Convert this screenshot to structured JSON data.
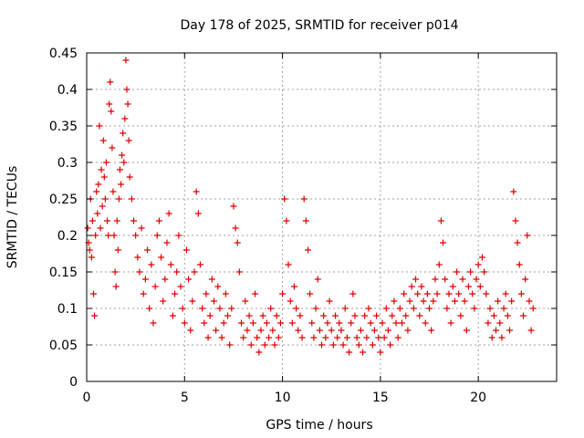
{
  "chart_data": {
    "type": "scatter",
    "title": "Day 178 of 2025, SRMTID for receiver p014",
    "xlabel": "GPS time / hours",
    "ylabel": "SRMTID / TECUs",
    "xlim": [
      0,
      24
    ],
    "ylim": [
      0,
      0.45
    ],
    "x_ticks": [
      0,
      5,
      10,
      15,
      20
    ],
    "y_ticks": [
      0,
      0.05,
      0.1,
      0.15,
      0.2,
      0.25,
      0.3,
      0.35,
      0.4,
      0.45
    ],
    "x_tick_labels": [
      "0",
      "5",
      "10",
      "15",
      "20"
    ],
    "y_tick_labels": [
      "0",
      "0.05",
      "0.1",
      "0.15",
      "0.2",
      "0.25",
      "0.3",
      "0.35",
      "0.4",
      "0.45"
    ],
    "grid": true,
    "marker": "+",
    "series": [
      {
        "name": "SRMTID",
        "color": "#e00000",
        "points": [
          [
            0.05,
            0.21
          ],
          [
            0.1,
            0.19
          ],
          [
            0.15,
            0.18
          ],
          [
            0.2,
            0.25
          ],
          [
            0.25,
            0.17
          ],
          [
            0.3,
            0.22
          ],
          [
            0.35,
            0.12
          ],
          [
            0.4,
            0.09
          ],
          [
            0.45,
            0.2
          ],
          [
            0.5,
            0.26
          ],
          [
            0.55,
            0.23
          ],
          [
            0.6,
            0.27
          ],
          [
            0.65,
            0.35
          ],
          [
            0.7,
            0.21
          ],
          [
            0.75,
            0.29
          ],
          [
            0.8,
            0.24
          ],
          [
            0.85,
            0.33
          ],
          [
            0.9,
            0.28
          ],
          [
            0.95,
            0.25
          ],
          [
            1.0,
            0.3
          ],
          [
            1.05,
            0.22
          ],
          [
            1.1,
            0.2
          ],
          [
            1.15,
            0.38
          ],
          [
            1.2,
            0.41
          ],
          [
            1.25,
            0.37
          ],
          [
            1.3,
            0.32
          ],
          [
            1.35,
            0.26
          ],
          [
            1.4,
            0.2
          ],
          [
            1.45,
            0.15
          ],
          [
            1.5,
            0.13
          ],
          [
            1.55,
            0.22
          ],
          [
            1.6,
            0.18
          ],
          [
            1.65,
            0.25
          ],
          [
            1.7,
            0.29
          ],
          [
            1.75,
            0.27
          ],
          [
            1.8,
            0.31
          ],
          [
            1.85,
            0.34
          ],
          [
            1.9,
            0.3
          ],
          [
            1.95,
            0.36
          ],
          [
            2.0,
            0.44
          ],
          [
            2.05,
            0.4
          ],
          [
            2.1,
            0.38
          ],
          [
            2.15,
            0.33
          ],
          [
            2.2,
            0.28
          ],
          [
            2.3,
            0.25
          ],
          [
            2.4,
            0.22
          ],
          [
            2.5,
            0.2
          ],
          [
            2.6,
            0.17
          ],
          [
            2.7,
            0.15
          ],
          [
            2.8,
            0.21
          ],
          [
            2.9,
            0.12
          ],
          [
            3.0,
            0.14
          ],
          [
            3.1,
            0.18
          ],
          [
            3.2,
            0.1
          ],
          [
            3.3,
            0.16
          ],
          [
            3.4,
            0.08
          ],
          [
            3.5,
            0.13
          ],
          [
            3.6,
            0.2
          ],
          [
            3.7,
            0.22
          ],
          [
            3.8,
            0.17
          ],
          [
            3.9,
            0.11
          ],
          [
            4.0,
            0.14
          ],
          [
            4.1,
            0.19
          ],
          [
            4.2,
            0.23
          ],
          [
            4.3,
            0.16
          ],
          [
            4.4,
            0.09
          ],
          [
            4.5,
            0.12
          ],
          [
            4.6,
            0.15
          ],
          [
            4.7,
            0.2
          ],
          [
            4.8,
            0.13
          ],
          [
            4.9,
            0.1
          ],
          [
            5.0,
            0.08
          ],
          [
            5.1,
            0.18
          ],
          [
            5.2,
            0.14
          ],
          [
            5.3,
            0.07
          ],
          [
            5.4,
            0.11
          ],
          [
            5.5,
            0.15
          ],
          [
            5.6,
            0.26
          ],
          [
            5.7,
            0.23
          ],
          [
            5.8,
            0.16
          ],
          [
            5.9,
            0.1
          ],
          [
            6.0,
            0.08
          ],
          [
            6.1,
            0.12
          ],
          [
            6.2,
            0.06
          ],
          [
            6.3,
            0.09
          ],
          [
            6.4,
            0.14
          ],
          [
            6.5,
            0.11
          ],
          [
            6.6,
            0.07
          ],
          [
            6.7,
            0.13
          ],
          [
            6.8,
            0.1
          ],
          [
            6.9,
            0.06
          ],
          [
            7.0,
            0.08
          ],
          [
            7.1,
            0.12
          ],
          [
            7.2,
            0.09
          ],
          [
            7.3,
            0.05
          ],
          [
            7.4,
            0.1
          ],
          [
            7.5,
            0.24
          ],
          [
            7.6,
            0.21
          ],
          [
            7.7,
            0.19
          ],
          [
            7.8,
            0.15
          ],
          [
            7.9,
            0.08
          ],
          [
            8.0,
            0.06
          ],
          [
            8.1,
            0.11
          ],
          [
            8.2,
            0.07
          ],
          [
            8.3,
            0.09
          ],
          [
            8.4,
            0.05
          ],
          [
            8.5,
            0.08
          ],
          [
            8.6,
            0.12
          ],
          [
            8.7,
            0.06
          ],
          [
            8.8,
            0.04
          ],
          [
            8.9,
            0.07
          ],
          [
            9.0,
            0.09
          ],
          [
            9.1,
            0.05
          ],
          [
            9.2,
            0.08
          ],
          [
            9.3,
            0.06
          ],
          [
            9.4,
            0.1
          ],
          [
            9.5,
            0.07
          ],
          [
            9.6,
            0.05
          ],
          [
            9.7,
            0.09
          ],
          [
            9.8,
            0.06
          ],
          [
            9.9,
            0.08
          ],
          [
            10.0,
            0.12
          ],
          [
            10.1,
            0.25
          ],
          [
            10.2,
            0.22
          ],
          [
            10.3,
            0.16
          ],
          [
            10.4,
            0.11
          ],
          [
            10.5,
            0.08
          ],
          [
            10.6,
            0.13
          ],
          [
            10.7,
            0.1
          ],
          [
            10.8,
            0.07
          ],
          [
            10.9,
            0.09
          ],
          [
            11.0,
            0.06
          ],
          [
            11.1,
            0.25
          ],
          [
            11.2,
            0.22
          ],
          [
            11.3,
            0.18
          ],
          [
            11.4,
            0.12
          ],
          [
            11.5,
            0.08
          ],
          [
            11.6,
            0.06
          ],
          [
            11.7,
            0.1
          ],
          [
            11.8,
            0.14
          ],
          [
            11.9,
            0.07
          ],
          [
            12.0,
            0.05
          ],
          [
            12.1,
            0.09
          ],
          [
            12.2,
            0.06
          ],
          [
            12.3,
            0.08
          ],
          [
            12.4,
            0.11
          ],
          [
            12.5,
            0.07
          ],
          [
            12.6,
            0.05
          ],
          [
            12.7,
            0.09
          ],
          [
            12.8,
            0.06
          ],
          [
            12.9,
            0.08
          ],
          [
            13.0,
            0.07
          ],
          [
            13.1,
            0.05
          ],
          [
            13.2,
            0.1
          ],
          [
            13.3,
            0.06
          ],
          [
            13.4,
            0.04
          ],
          [
            13.5,
            0.08
          ],
          [
            13.6,
            0.12
          ],
          [
            13.7,
            0.09
          ],
          [
            13.8,
            0.06
          ],
          [
            13.9,
            0.05
          ],
          [
            14.0,
            0.07
          ],
          [
            14.1,
            0.04
          ],
          [
            14.2,
            0.09
          ],
          [
            14.3,
            0.06
          ],
          [
            14.4,
            0.1
          ],
          [
            14.5,
            0.08
          ],
          [
            14.6,
            0.05
          ],
          [
            14.7,
            0.07
          ],
          [
            14.8,
            0.09
          ],
          [
            14.9,
            0.06
          ],
          [
            15.0,
            0.04
          ],
          [
            15.1,
            0.08
          ],
          [
            15.2,
            0.06
          ],
          [
            15.3,
            0.1
          ],
          [
            15.4,
            0.07
          ],
          [
            15.5,
            0.05
          ],
          [
            15.6,
            0.09
          ],
          [
            15.7,
            0.11
          ],
          [
            15.8,
            0.08
          ],
          [
            15.9,
            0.06
          ],
          [
            16.0,
            0.1
          ],
          [
            16.1,
            0.08
          ],
          [
            16.2,
            0.12
          ],
          [
            16.3,
            0.09
          ],
          [
            16.4,
            0.07
          ],
          [
            16.5,
            0.11
          ],
          [
            16.6,
            0.13
          ],
          [
            16.7,
            0.1
          ],
          [
            16.8,
            0.14
          ],
          [
            16.9,
            0.12
          ],
          [
            17.0,
            0.09
          ],
          [
            17.1,
            0.13
          ],
          [
            17.2,
            0.11
          ],
          [
            17.3,
            0.08
          ],
          [
            17.4,
            0.12
          ],
          [
            17.5,
            0.1
          ],
          [
            17.6,
            0.07
          ],
          [
            17.7,
            0.11
          ],
          [
            17.8,
            0.14
          ],
          [
            17.9,
            0.12
          ],
          [
            18.0,
            0.16
          ],
          [
            18.1,
            0.22
          ],
          [
            18.2,
            0.19
          ],
          [
            18.3,
            0.14
          ],
          [
            18.4,
            0.1
          ],
          [
            18.5,
            0.12
          ],
          [
            18.6,
            0.08
          ],
          [
            18.7,
            0.13
          ],
          [
            18.8,
            0.11
          ],
          [
            18.9,
            0.15
          ],
          [
            19.0,
            0.12
          ],
          [
            19.1,
            0.09
          ],
          [
            19.2,
            0.14
          ],
          [
            19.3,
            0.11
          ],
          [
            19.4,
            0.07
          ],
          [
            19.5,
            0.13
          ],
          [
            19.6,
            0.15
          ],
          [
            19.7,
            0.12
          ],
          [
            19.8,
            0.1
          ],
          [
            19.9,
            0.14
          ],
          [
            20.0,
            0.16
          ],
          [
            20.1,
            0.13
          ],
          [
            20.2,
            0.17
          ],
          [
            20.3,
            0.15
          ],
          [
            20.4,
            0.12
          ],
          [
            20.5,
            0.08
          ],
          [
            20.6,
            0.1
          ],
          [
            20.7,
            0.06
          ],
          [
            20.8,
            0.09
          ],
          [
            20.9,
            0.07
          ],
          [
            21.0,
            0.11
          ],
          [
            21.1,
            0.08
          ],
          [
            21.2,
            0.06
          ],
          [
            21.3,
            0.1
          ],
          [
            21.4,
            0.12
          ],
          [
            21.5,
            0.09
          ],
          [
            21.6,
            0.07
          ],
          [
            21.7,
            0.11
          ],
          [
            21.8,
            0.26
          ],
          [
            21.9,
            0.22
          ],
          [
            22.0,
            0.19
          ],
          [
            22.1,
            0.16
          ],
          [
            22.2,
            0.12
          ],
          [
            22.3,
            0.09
          ],
          [
            22.4,
            0.14
          ],
          [
            22.5,
            0.2
          ],
          [
            22.6,
            0.11
          ],
          [
            22.7,
            0.07
          ],
          [
            22.8,
            0.1
          ]
        ]
      }
    ]
  }
}
